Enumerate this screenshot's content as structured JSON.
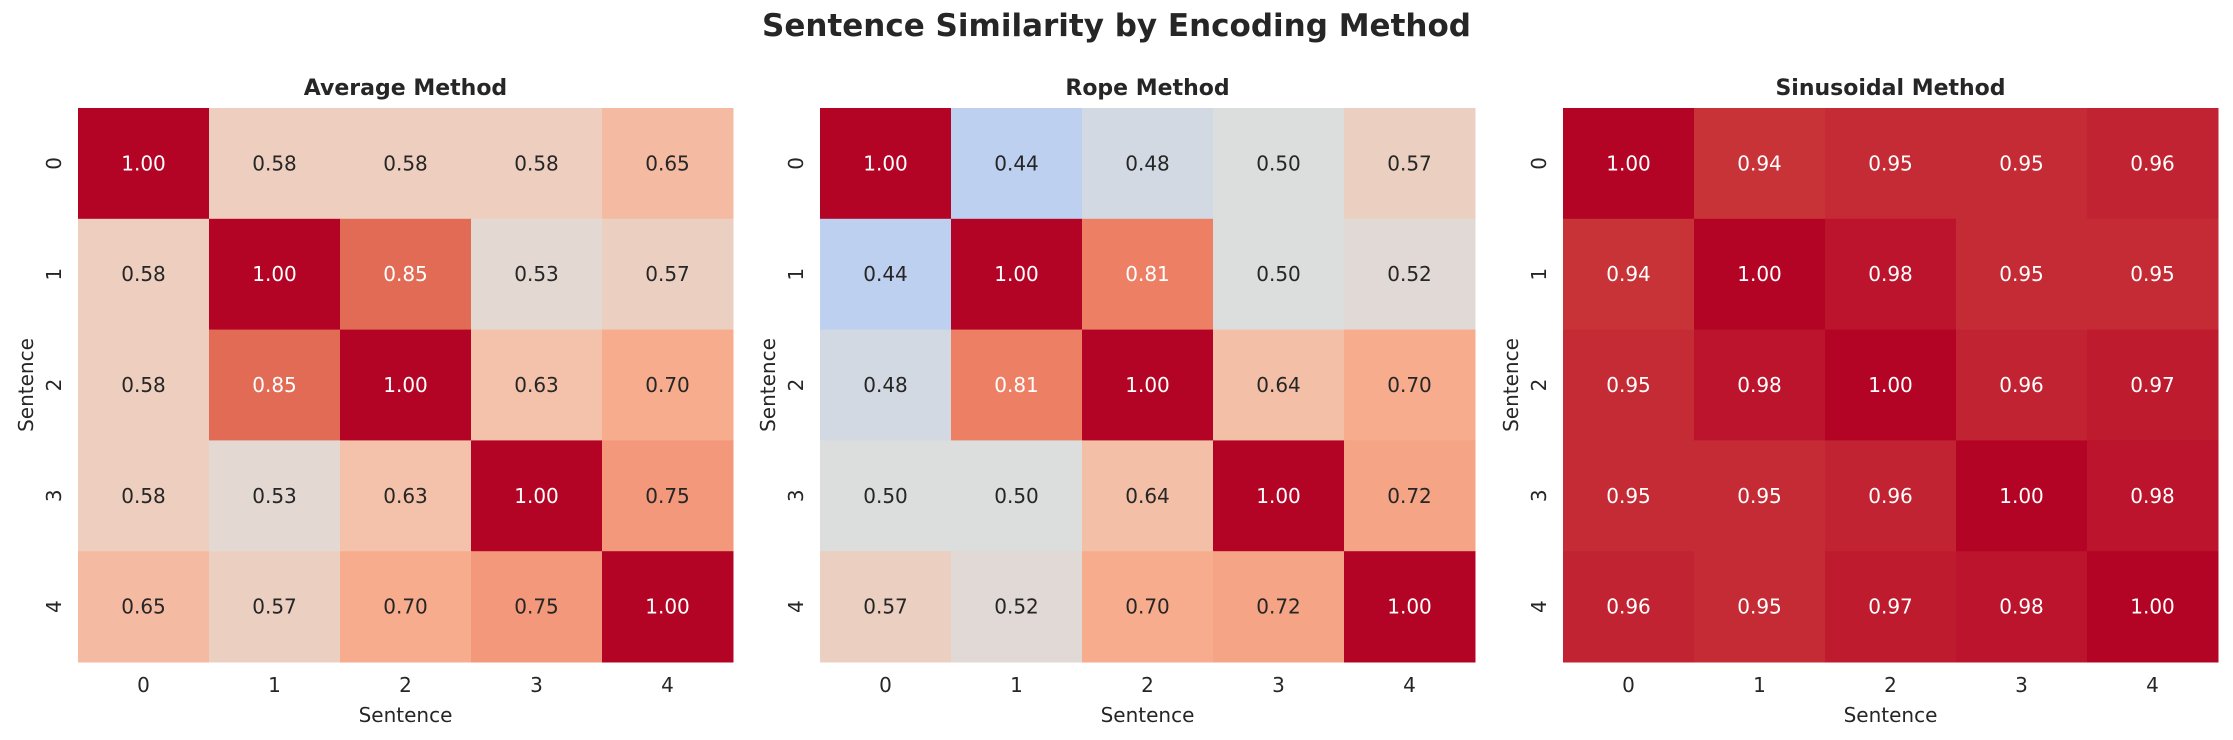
{
  "chart_data": {
    "title": "Sentence Similarity by Encoding Method",
    "colormap": "coolwarm",
    "vmin": 0,
    "vmax": 1,
    "panels": [
      {
        "type": "heatmap",
        "title": "Average Method",
        "xlabel": "Sentence",
        "ylabel": "Sentence",
        "xticks": [
          "0",
          "1",
          "2",
          "3",
          "4"
        ],
        "yticks": [
          "0",
          "1",
          "2",
          "3",
          "4"
        ],
        "values": [
          [
            1.0,
            0.58,
            0.58,
            0.58,
            0.65
          ],
          [
            0.58,
            1.0,
            0.85,
            0.53,
            0.57
          ],
          [
            0.58,
            0.85,
            1.0,
            0.63,
            0.7
          ],
          [
            0.58,
            0.53,
            0.63,
            1.0,
            0.75
          ],
          [
            0.65,
            0.57,
            0.7,
            0.75,
            1.0
          ]
        ]
      },
      {
        "type": "heatmap",
        "title": "Rope Method",
        "xlabel": "Sentence",
        "ylabel": "Sentence",
        "xticks": [
          "0",
          "1",
          "2",
          "3",
          "4"
        ],
        "yticks": [
          "0",
          "1",
          "2",
          "3",
          "4"
        ],
        "values": [
          [
            1.0,
            0.44,
            0.48,
            0.5,
            0.57
          ],
          [
            0.44,
            1.0,
            0.81,
            0.5,
            0.52
          ],
          [
            0.48,
            0.81,
            1.0,
            0.64,
            0.7
          ],
          [
            0.5,
            0.5,
            0.64,
            1.0,
            0.72
          ],
          [
            0.57,
            0.52,
            0.7,
            0.72,
            1.0
          ]
        ]
      },
      {
        "type": "heatmap",
        "title": "Sinusoidal Method",
        "xlabel": "Sentence",
        "ylabel": "Sentence",
        "xticks": [
          "0",
          "1",
          "2",
          "3",
          "4"
        ],
        "yticks": [
          "0",
          "1",
          "2",
          "3",
          "4"
        ],
        "values": [
          [
            1.0,
            0.94,
            0.95,
            0.95,
            0.96
          ],
          [
            0.94,
            1.0,
            0.98,
            0.95,
            0.95
          ],
          [
            0.95,
            0.98,
            1.0,
            0.96,
            0.97
          ],
          [
            0.95,
            0.95,
            0.96,
            1.0,
            0.98
          ],
          [
            0.96,
            0.95,
            0.97,
            0.98,
            1.0
          ]
        ]
      }
    ]
  }
}
